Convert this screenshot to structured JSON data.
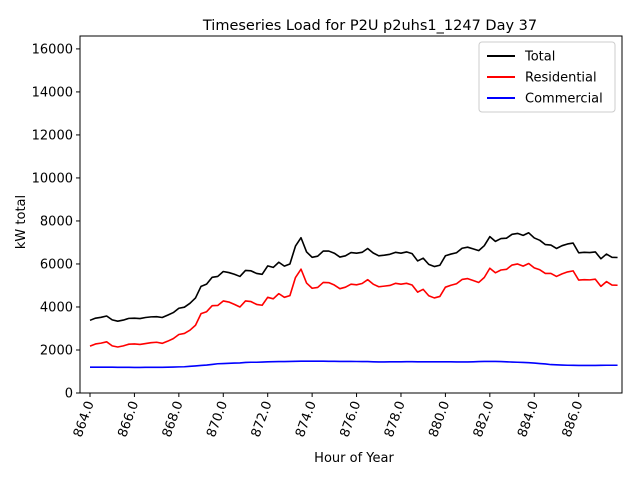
{
  "chart_data": {
    "type": "line",
    "title": "Timeseries Load for P2U p2uhs1_1247  Day 37",
    "xlabel": "Hour of Year",
    "ylabel": "kW total",
    "xlim": [
      863.55,
      887.95
    ],
    "ylim": [
      0,
      16600
    ],
    "xticks": [
      864,
      866,
      868,
      870,
      872,
      874,
      876,
      878,
      880,
      882,
      884,
      886
    ],
    "xtick_labels": [
      "864.0",
      "866.0",
      "868.0",
      "870.0",
      "872.0",
      "874.0",
      "876.0",
      "878.0",
      "880.0",
      "882.0",
      "884.0",
      "886.0"
    ],
    "yticks": [
      0,
      2000,
      4000,
      6000,
      8000,
      10000,
      12000,
      14000,
      16000
    ],
    "ytick_labels": [
      "0",
      "2000",
      "4000",
      "6000",
      "8000",
      "10000",
      "12000",
      "14000",
      "16000"
    ],
    "legend_position": "top-right",
    "x_start": 864.0,
    "x_step": 0.25,
    "series": [
      {
        "name": "Total",
        "color": "#000000",
        "values": [
          3380,
          3480,
          3520,
          3580,
          3400,
          3340,
          3390,
          3470,
          3480,
          3460,
          3510,
          3540,
          3550,
          3510,
          3620,
          3740,
          3940,
          3990,
          4170,
          4420,
          4960,
          5060,
          5380,
          5420,
          5650,
          5600,
          5520,
          5420,
          5700,
          5680,
          5560,
          5520,
          5910,
          5840,
          6080,
          5900,
          6000,
          6830,
          7220,
          6560,
          6310,
          6360,
          6600,
          6600,
          6500,
          6320,
          6380,
          6530,
          6500,
          6540,
          6720,
          6510,
          6380,
          6410,
          6450,
          6540,
          6500,
          6560,
          6480,
          6140,
          6270,
          5980,
          5880,
          5940,
          6380,
          6460,
          6520,
          6730,
          6780,
          6700,
          6620,
          6850,
          7270,
          7050,
          7180,
          7200,
          7380,
          7420,
          7330,
          7450,
          7210,
          7100,
          6900,
          6880,
          6720,
          6850,
          6930,
          6970,
          6520,
          6540,
          6530,
          6560,
          6240,
          6460,
          6310,
          6300
        ]
      },
      {
        "name": "Residential",
        "color": "#ff0000",
        "values": [
          2180,
          2280,
          2320,
          2380,
          2190,
          2140,
          2190,
          2270,
          2280,
          2260,
          2300,
          2340,
          2360,
          2310,
          2410,
          2530,
          2720,
          2770,
          2920,
          3150,
          3690,
          3780,
          4060,
          4070,
          4280,
          4230,
          4120,
          4000,
          4280,
          4250,
          4120,
          4080,
          4450,
          4380,
          4620,
          4450,
          4530,
          5370,
          5760,
          5110,
          4870,
          4910,
          5140,
          5130,
          5020,
          4850,
          4920,
          5060,
          5030,
          5090,
          5270,
          5060,
          4940,
          4970,
          5000,
          5100,
          5060,
          5100,
          5020,
          4690,
          4820,
          4520,
          4420,
          4490,
          4920,
          5010,
          5080,
          5280,
          5320,
          5230,
          5140,
          5370,
          5800,
          5590,
          5720,
          5750,
          5950,
          6000,
          5900,
          6020,
          5820,
          5730,
          5560,
          5560,
          5420,
          5540,
          5630,
          5680,
          5250,
          5270,
          5260,
          5290,
          4960,
          5180,
          5020,
          5010
        ]
      },
      {
        "name": "Commercial",
        "color": "#0000ff",
        "values": [
          1200,
          1200,
          1200,
          1200,
          1200,
          1195,
          1195,
          1195,
          1190,
          1190,
          1195,
          1195,
          1195,
          1195,
          1200,
          1205,
          1215,
          1220,
          1240,
          1260,
          1280,
          1300,
          1330,
          1360,
          1370,
          1380,
          1390,
          1400,
          1420,
          1430,
          1430,
          1440,
          1450,
          1455,
          1460,
          1460,
          1470,
          1475,
          1480,
          1480,
          1480,
          1480,
          1480,
          1475,
          1475,
          1470,
          1470,
          1470,
          1465,
          1460,
          1460,
          1450,
          1445,
          1445,
          1450,
          1450,
          1450,
          1455,
          1455,
          1450,
          1450,
          1450,
          1450,
          1450,
          1450,
          1450,
          1445,
          1445,
          1445,
          1450,
          1460,
          1470,
          1470,
          1470,
          1460,
          1450,
          1440,
          1430,
          1420,
          1410,
          1390,
          1370,
          1350,
          1320,
          1310,
          1300,
          1290,
          1285,
          1280,
          1280,
          1280,
          1280,
          1285,
          1290,
          1290,
          1290
        ]
      }
    ]
  }
}
